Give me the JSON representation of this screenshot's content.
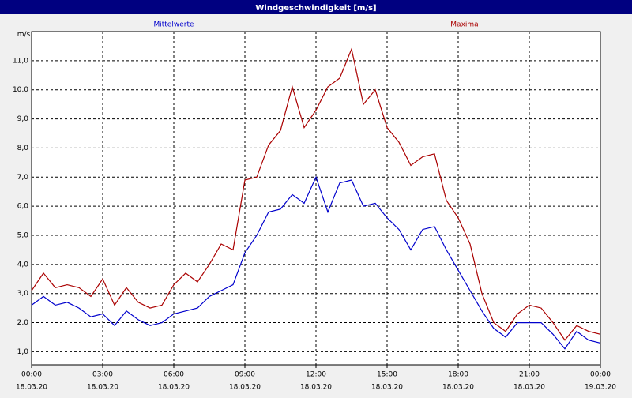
{
  "chart_data": {
    "type": "line",
    "title": "Windgeschwindigkeit [m/s]",
    "y_unit": "m/s",
    "x": [
      0,
      0.5,
      1,
      1.5,
      2,
      2.5,
      3,
      3.5,
      4,
      4.5,
      5,
      5.5,
      6,
      6.5,
      7,
      7.5,
      8,
      8.5,
      9,
      9.5,
      10,
      10.5,
      11,
      11.5,
      12,
      12.5,
      13,
      13.5,
      14,
      14.5,
      15,
      15.5,
      16,
      16.5,
      17,
      17.5,
      18,
      18.5,
      19,
      19.5,
      20,
      20.5,
      21,
      21.5,
      22,
      22.5,
      23,
      23.5,
      24
    ],
    "series": [
      {
        "name": "Mittelwerte",
        "color": "#0000cc",
        "values": [
          2.6,
          2.9,
          2.6,
          2.7,
          2.5,
          2.2,
          2.3,
          1.9,
          2.4,
          2.1,
          1.9,
          2.0,
          2.3,
          2.4,
          2.5,
          2.9,
          3.1,
          3.3,
          4.4,
          5.0,
          5.8,
          5.9,
          6.4,
          6.1,
          7.0,
          5.8,
          6.8,
          6.9,
          6.0,
          6.1,
          5.6,
          5.2,
          4.5,
          5.2,
          5.3,
          4.5,
          3.8,
          3.1,
          2.4,
          1.8,
          1.5,
          2.0,
          2.0,
          2.0,
          1.6,
          1.1,
          1.7,
          1.4,
          1.3
        ]
      },
      {
        "name": "Maxima",
        "color": "#aa0000",
        "values": [
          3.1,
          3.7,
          3.2,
          3.3,
          3.2,
          2.9,
          3.5,
          2.6,
          3.2,
          2.7,
          2.5,
          2.6,
          3.3,
          3.7,
          3.4,
          4.0,
          4.7,
          4.5,
          6.9,
          7.0,
          8.1,
          8.6,
          10.1,
          8.7,
          9.3,
          10.1,
          10.4,
          11.4,
          9.5,
          10.0,
          8.7,
          8.2,
          7.4,
          7.7,
          7.8,
          6.2,
          5.6,
          4.7,
          3.0,
          2.0,
          1.7,
          2.3,
          2.6,
          2.5,
          2.0,
          1.4,
          1.9,
          1.7,
          1.6
        ]
      }
    ],
    "xlim": [
      0,
      24
    ],
    "ylim": [
      0.55,
      12
    ],
    "xticks": [
      {
        "value": 0,
        "label": "00:00"
      },
      {
        "value": 3,
        "label": "03:00"
      },
      {
        "value": 6,
        "label": "06:00"
      },
      {
        "value": 9,
        "label": "09:00"
      },
      {
        "value": 12,
        "label": "12:00"
      },
      {
        "value": 15,
        "label": "15:00"
      },
      {
        "value": 18,
        "label": "18:00"
      },
      {
        "value": 21,
        "label": "21:00"
      },
      {
        "value": 24,
        "label": "00:00"
      }
    ],
    "xtick_dates": [
      "18.03.20",
      "18.03.20",
      "18.03.20",
      "18.03.20",
      "18.03.20",
      "18.03.20",
      "18.03.20",
      "18.03.20",
      "19.03.20"
    ],
    "yticks": [
      {
        "value": 1,
        "label": "1,0"
      },
      {
        "value": 2,
        "label": "2,0"
      },
      {
        "value": 3,
        "label": "3,0"
      },
      {
        "value": 4,
        "label": "4,0"
      },
      {
        "value": 5,
        "label": "5,0"
      },
      {
        "value": 6,
        "label": "6,0"
      },
      {
        "value": 7,
        "label": "7,0"
      },
      {
        "value": 8,
        "label": "8,0"
      },
      {
        "value": 9,
        "label": "9,0"
      },
      {
        "value": 10,
        "label": "10,0"
      },
      {
        "value": 11,
        "label": "11,0"
      }
    ],
    "grid": true
  }
}
